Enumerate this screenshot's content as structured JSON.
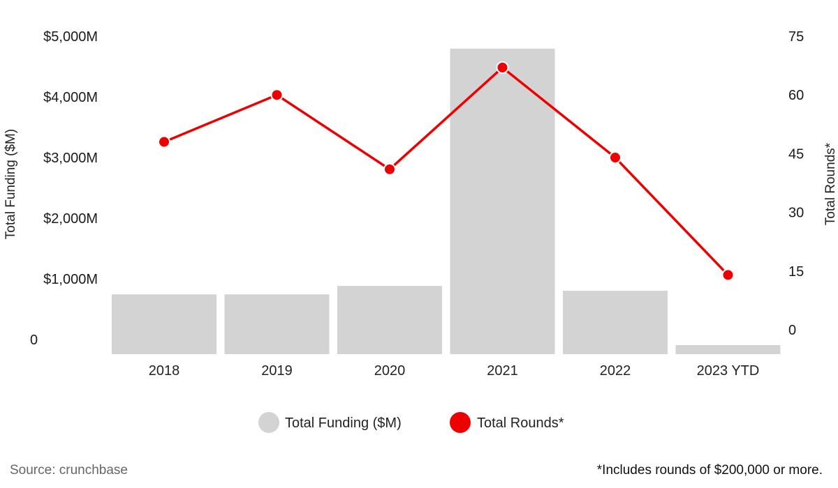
{
  "chart_data": {
    "type": "bar",
    "categories": [
      "2018",
      "2019",
      "2020",
      "2021",
      "2022",
      "2023 YTD"
    ],
    "series": [
      {
        "name": "Total Funding ($M)",
        "type": "bar",
        "axis": "left",
        "color": "#d3d3d3",
        "values": [
          990,
          990,
          1130,
          5060,
          1050,
          150
        ]
      },
      {
        "name": "Total Rounds*",
        "type": "line",
        "axis": "right",
        "color": "#ee0000",
        "values": [
          48,
          60,
          41,
          67,
          44,
          14
        ]
      }
    ],
    "left_axis": {
      "label": "Total Funding ($M)",
      "range": [
        0,
        5000
      ],
      "ticks": [
        {
          "value": 0,
          "label": "0"
        },
        {
          "value": 1000,
          "label": "$1,000M"
        },
        {
          "value": 2000,
          "label": "$2,000M"
        },
        {
          "value": 3000,
          "label": "$3,000M"
        },
        {
          "value": 4000,
          "label": "$4,000M"
        },
        {
          "value": 5000,
          "label": "$5,000M"
        }
      ]
    },
    "right_axis": {
      "label": "Total Rounds*",
      "range": [
        0,
        75
      ],
      "ticks": [
        {
          "value": 0,
          "label": "0"
        },
        {
          "value": 15,
          "label": "15"
        },
        {
          "value": 30,
          "label": "30"
        },
        {
          "value": 45,
          "label": "45"
        },
        {
          "value": 60,
          "label": "60"
        },
        {
          "value": 75,
          "label": "75"
        }
      ]
    },
    "grid": false,
    "legend_position": "bottom-center"
  },
  "footer": {
    "source": "Source: crunchbase",
    "note": "*Includes rounds of $200,000 or more."
  }
}
